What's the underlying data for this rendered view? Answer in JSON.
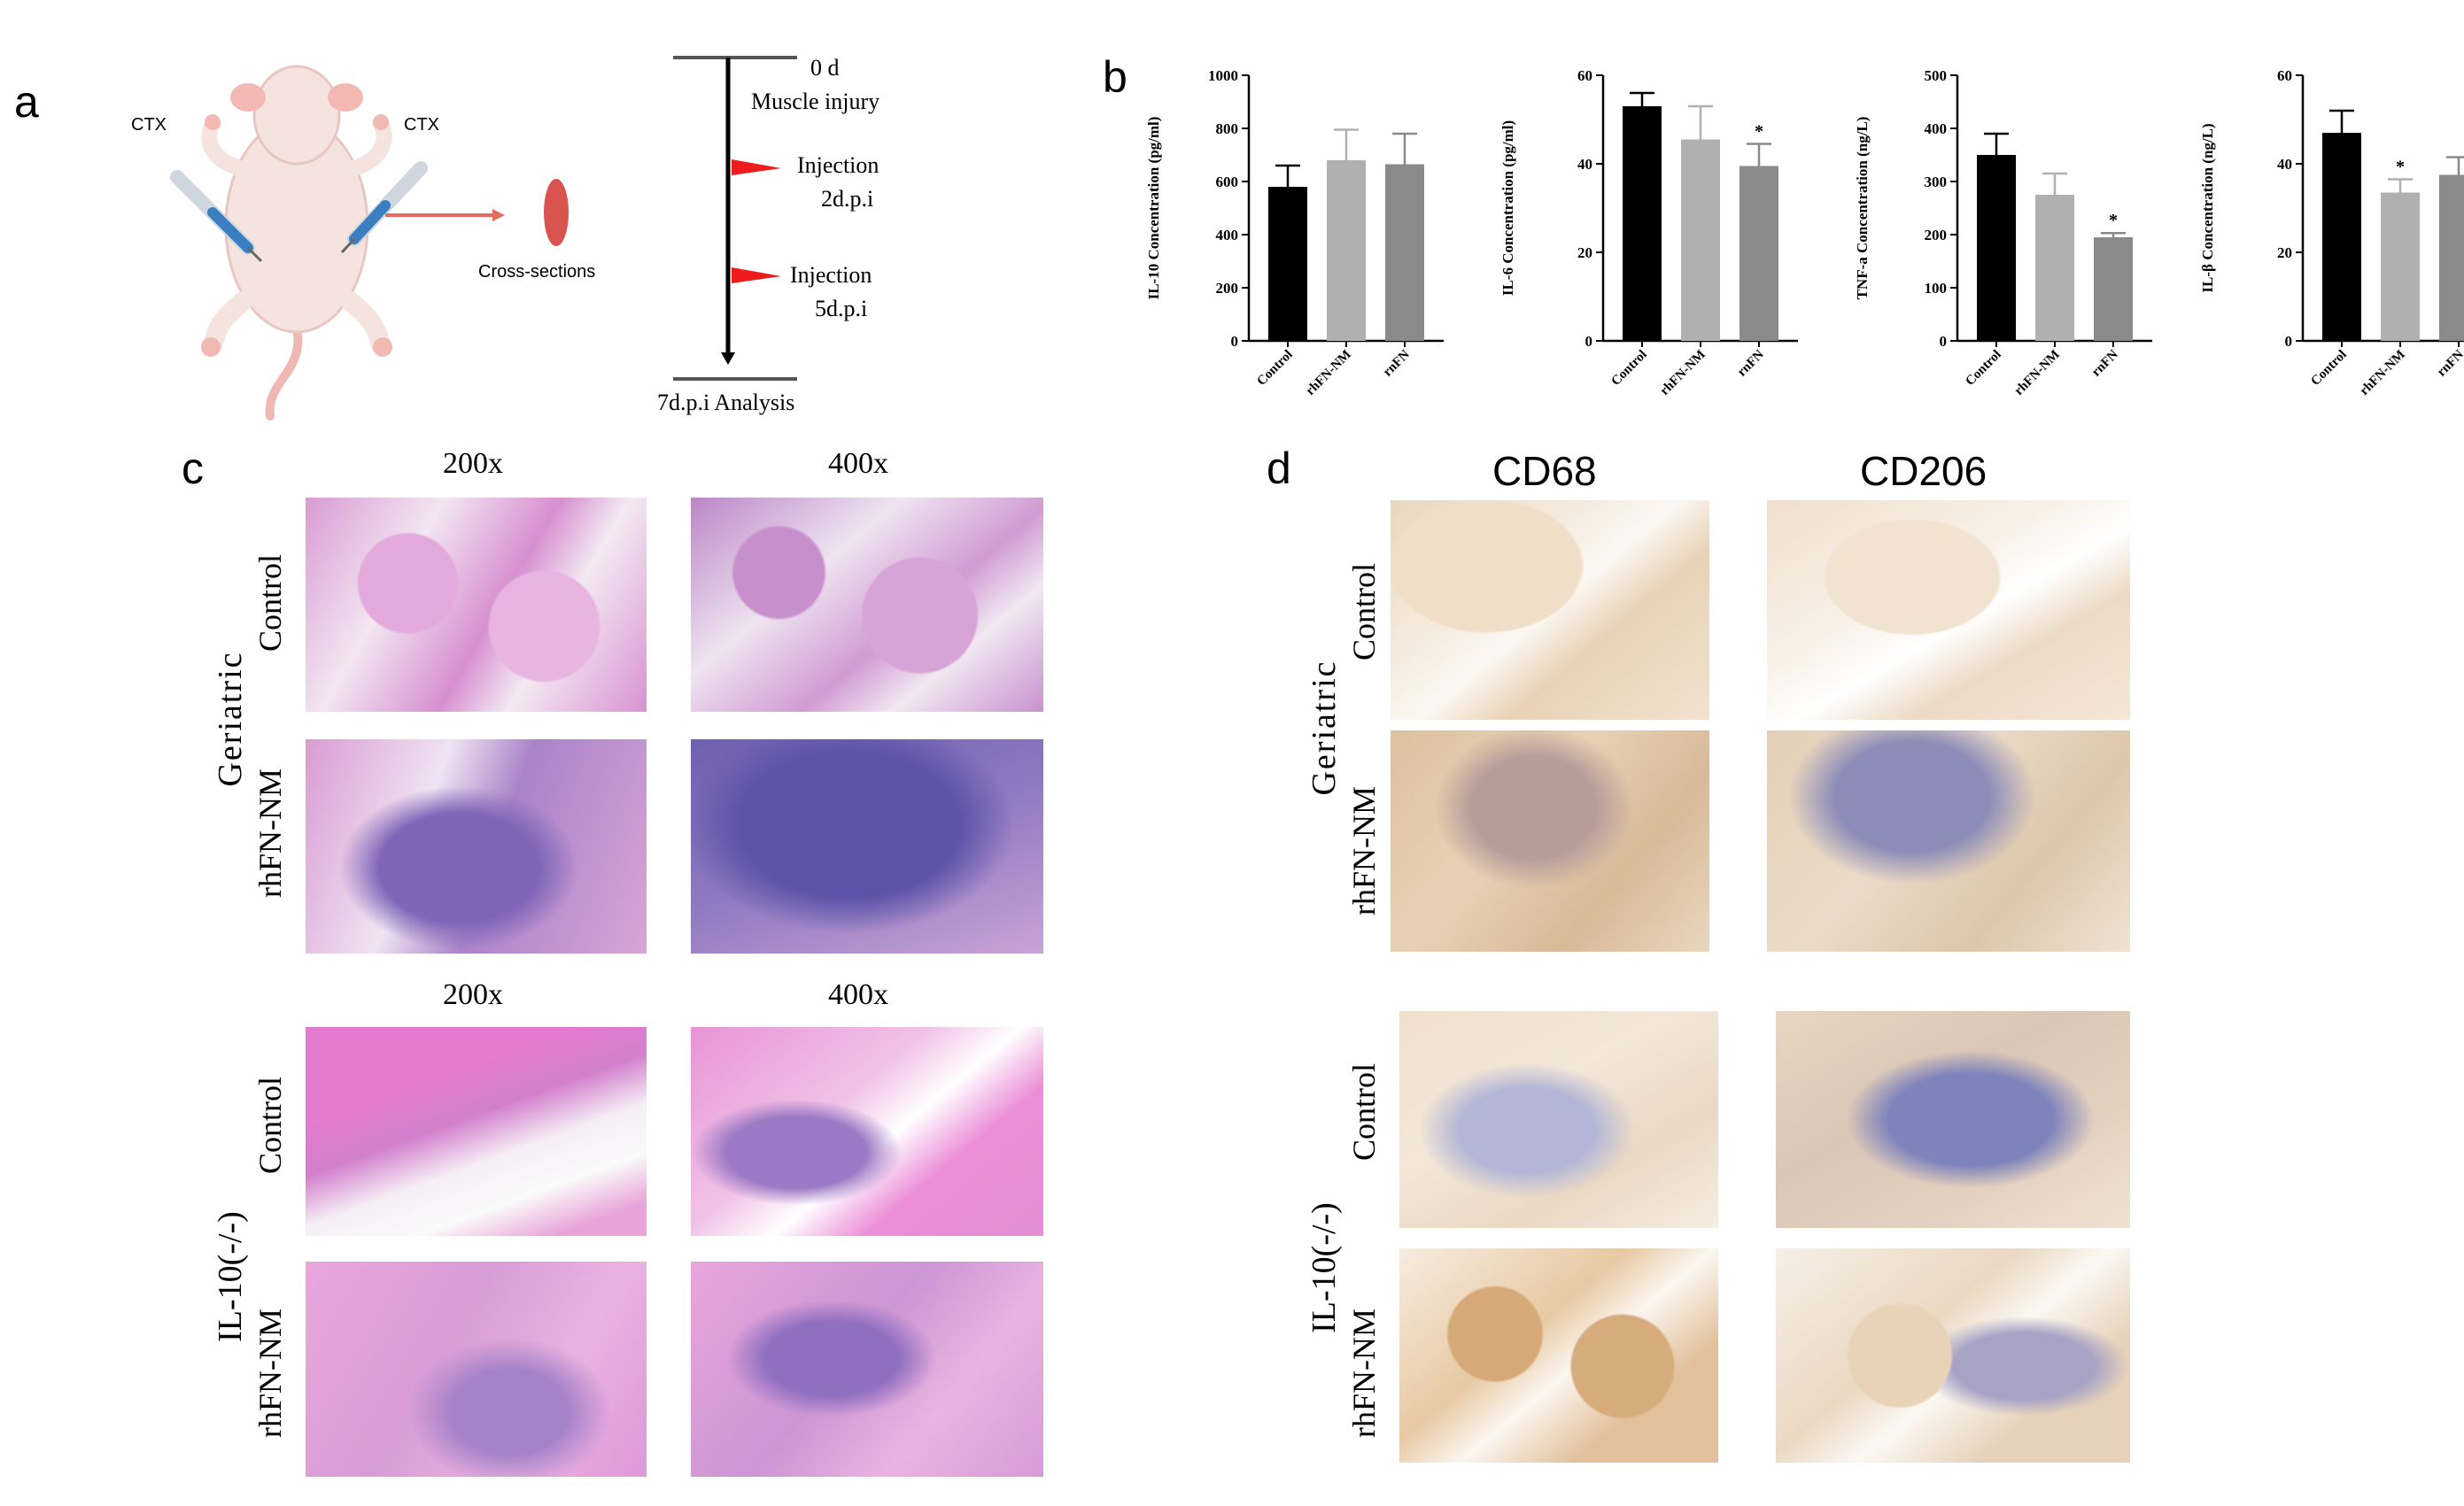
{
  "panels": {
    "a": "a",
    "b": "b",
    "c": "c",
    "d": "d"
  },
  "panel_a": {
    "ctx_left": "CTX",
    "ctx_right": "CTX",
    "cross_sections": "Cross-sections",
    "timeline": {
      "t0_day": "0 d",
      "t0_event": "Muscle injury",
      "inj1": "Injection",
      "inj1_day": "2d.p.i",
      "inj2": "Injection",
      "inj2_day": "5d.p.i",
      "end": "7d.p.i Analysis"
    },
    "colors": {
      "arrow": "#e46b5e",
      "flag": "#ee1c1c",
      "syringe": "#3c7fc1",
      "mouse": "#f3dcd6"
    }
  },
  "chart_data": [
    {
      "type": "bar",
      "ylabel": "IL-10 Concentration (pg/ml)",
      "ylim": [
        0,
        1000
      ],
      "yticks": [
        "0",
        "200",
        "400",
        "600",
        "800",
        "1000"
      ],
      "categories": [
        "Control",
        "rhFN-NM",
        "rnFN"
      ],
      "values": [
        580,
        680,
        665
      ],
      "errors": [
        80,
        115,
        115
      ],
      "stars": [
        "",
        "",
        ""
      ]
    },
    {
      "type": "bar",
      "ylabel": "IL-6 Concentration (pg/ml)",
      "ylim": [
        0,
        60
      ],
      "yticks": [
        "0",
        "20",
        "40",
        "60"
      ],
      "categories": [
        "Control",
        "rhFN-NM",
        "rnFN"
      ],
      "values": [
        53,
        45.5,
        39.5
      ],
      "errors": [
        3,
        7.5,
        5
      ],
      "stars": [
        "",
        "",
        "*"
      ]
    },
    {
      "type": "bar",
      "ylabel": "TNF-a Concentration (ng/L)",
      "ylim": [
        0,
        500
      ],
      "yticks": [
        "0",
        "100",
        "200",
        "300",
        "400",
        "500"
      ],
      "categories": [
        "Control",
        "rhFN-NM",
        "rnFN"
      ],
      "values": [
        350,
        275,
        195
      ],
      "errors": [
        40,
        40,
        8
      ],
      "stars": [
        "",
        "",
        "*"
      ]
    },
    {
      "type": "bar",
      "ylabel": "IL-β Concentration (ng/L)",
      "ylim": [
        0,
        60
      ],
      "yticks": [
        "0",
        "20",
        "40",
        "60"
      ],
      "categories": [
        "Control",
        "rhFN-NM",
        "rnFN"
      ],
      "values": [
        47,
        33.5,
        37.5
      ],
      "errors": [
        5,
        3,
        4
      ],
      "stars": [
        "",
        "*",
        ""
      ]
    }
  ],
  "bar_colors": [
    "#000000",
    "#b0b0b0",
    "#8a8a8a"
  ],
  "panel_c": {
    "mag_200_top": "200x",
    "mag_400_top": "400x",
    "mag_200_bot": "200x",
    "mag_400_bot": "400x",
    "group_top": "Geriatric",
    "group_bot": "IL-10(-/-)",
    "row_control_1": "Control",
    "row_treat_1": "rhFN-NM",
    "row_control_2": "Control",
    "row_treat_2": "rhFN-NM"
  },
  "panel_d": {
    "col_cd68": "CD68",
    "col_cd206": "CD206",
    "group_top": "Geriatric",
    "group_bot": "IL-10(-/-)",
    "row_control_1": "Control",
    "row_treat_1": "rhFN-NM",
    "row_control_2": "Control",
    "row_treat_2": "rhFN-NM"
  }
}
